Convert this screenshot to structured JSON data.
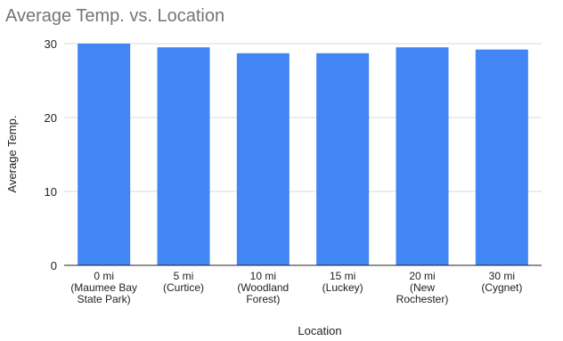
{
  "chart_data": {
    "type": "bar",
    "title": "Average Temp. vs. Location",
    "xlabel": "Location",
    "ylabel": "Average Temp.",
    "ylim": [
      0,
      30
    ],
    "yticks": [
      0,
      10,
      20,
      30
    ],
    "grid": true,
    "legend": "none",
    "bar_color": "#4285f4",
    "categories": [
      [
        "0 mi",
        "(Maumee Bay",
        "State Park)"
      ],
      [
        "5 mi",
        "(Curtice)"
      ],
      [
        "10 mi",
        "(Woodland",
        "Forest)"
      ],
      [
        "15 mi",
        "(Luckey)"
      ],
      [
        "20 mi",
        "(New",
        "Rochester)"
      ],
      [
        "30 mi",
        "(Cygnet)"
      ]
    ],
    "values": [
      30.0,
      29.5,
      28.7,
      28.7,
      29.5,
      29.2
    ]
  }
}
